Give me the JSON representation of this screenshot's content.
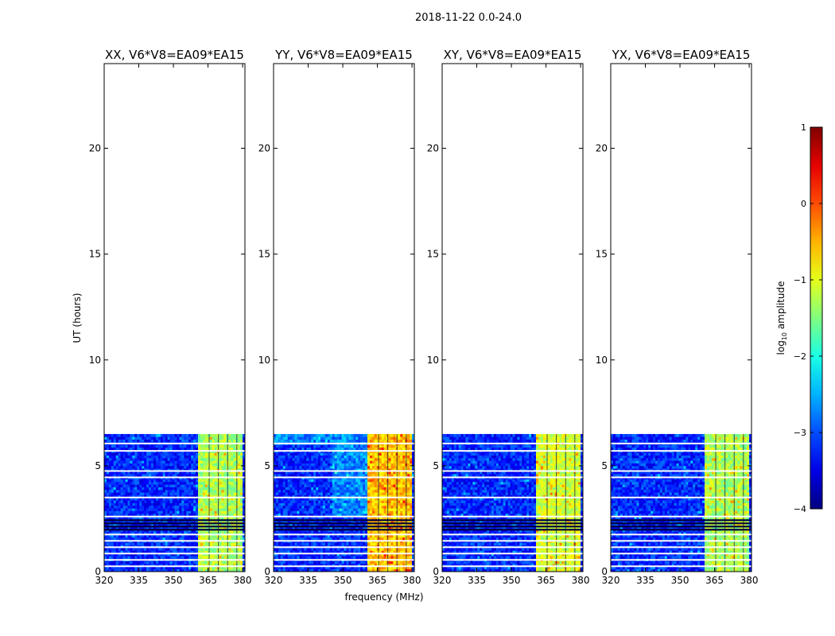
{
  "figure": {
    "suptitle": "2018-11-22 0.0-24.0"
  },
  "chart_data": {
    "type": "heatmap",
    "description_of_content": "dynamic spectra (log10 amplitude vs frequency and UT)",
    "xlabel": "frequency (MHz)",
    "ylabel": "UT (hours)",
    "xlim": [
      320,
      381
    ],
    "ylim": [
      0,
      24
    ],
    "xticks": [
      320,
      335,
      350,
      365,
      380
    ],
    "yticks": [
      0,
      5,
      10,
      15,
      20
    ],
    "data_extent_hours": [
      0,
      6.5
    ],
    "bright_band_mhz": [
      361,
      380
    ],
    "panels": [
      {
        "title": "XX, V6*V8=EA09*EA15",
        "pol": "XX",
        "band_level": -1.3
      },
      {
        "title": "YY, V6*V8=EA09*EA15",
        "pol": "YY",
        "band_level": -0.6
      },
      {
        "title": "XY, V6*V8=EA09*EA15",
        "pol": "XY",
        "band_level": -1.1
      },
      {
        "title": "YX, V6*V8=EA09*EA15",
        "pol": "YX",
        "band_level": -1.3
      }
    ],
    "gap_rows_hours": [
      0.25,
      0.55,
      0.85,
      1.15,
      1.45,
      1.75,
      2.6,
      3.5,
      4.45,
      4.75,
      5.7,
      6.05
    ],
    "dark_rows_hours": [
      1.95,
      2.1,
      2.25,
      2.4
    ],
    "colorbar": {
      "label_main": "log",
      "label_sub": "10",
      "label_tail": " amplitude",
      "range": [
        -4,
        1
      ],
      "ticks": [
        1,
        0,
        -1,
        -2,
        -3,
        -4
      ],
      "tick_labels": [
        "1",
        "0",
        "−1",
        "−2",
        "−3",
        "−4"
      ],
      "colormap": "jet"
    }
  }
}
